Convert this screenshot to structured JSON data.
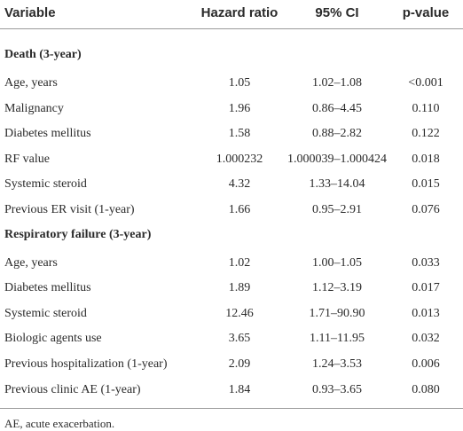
{
  "table": {
    "header": [
      "Variable",
      "Hazard ratio",
      "95% CI",
      "p-value"
    ],
    "sections": [
      {
        "title": "Death (3-year)",
        "rows": [
          [
            "Age, years",
            "1.05",
            "1.02–1.08",
            "<0.001"
          ],
          [
            "Malignancy",
            "1.96",
            "0.86–4.45",
            "0.110"
          ],
          [
            "Diabetes mellitus",
            "1.58",
            "0.88–2.82",
            "0.122"
          ],
          [
            "RF value",
            "1.000232",
            "1.000039–1.000424",
            "0.018"
          ],
          [
            "Systemic steroid",
            "4.32",
            "1.33–14.04",
            "0.015"
          ],
          [
            "Previous ER visit (1-year)",
            "1.66",
            "0.95–2.91",
            "0.076"
          ]
        ]
      },
      {
        "title": "Respiratory failure (3-year)",
        "rows": [
          [
            "Age, years",
            "1.02",
            "1.00–1.05",
            "0.033"
          ],
          [
            "Diabetes mellitus",
            "1.89",
            "1.12–3.19",
            "0.017"
          ],
          [
            "Systemic steroid",
            "12.46",
            "1.71–90.90",
            "0.013"
          ],
          [
            "Biologic agents use",
            "3.65",
            "1.11–11.95",
            "0.032"
          ],
          [
            "Previous hospitalization (1-year)",
            "2.09",
            "1.24–3.53",
            "0.006"
          ],
          [
            "Previous clinic AE (1-year)",
            "1.84",
            "0.93–3.65",
            "0.080"
          ]
        ]
      }
    ],
    "footnote": "AE, acute exacerbation."
  }
}
